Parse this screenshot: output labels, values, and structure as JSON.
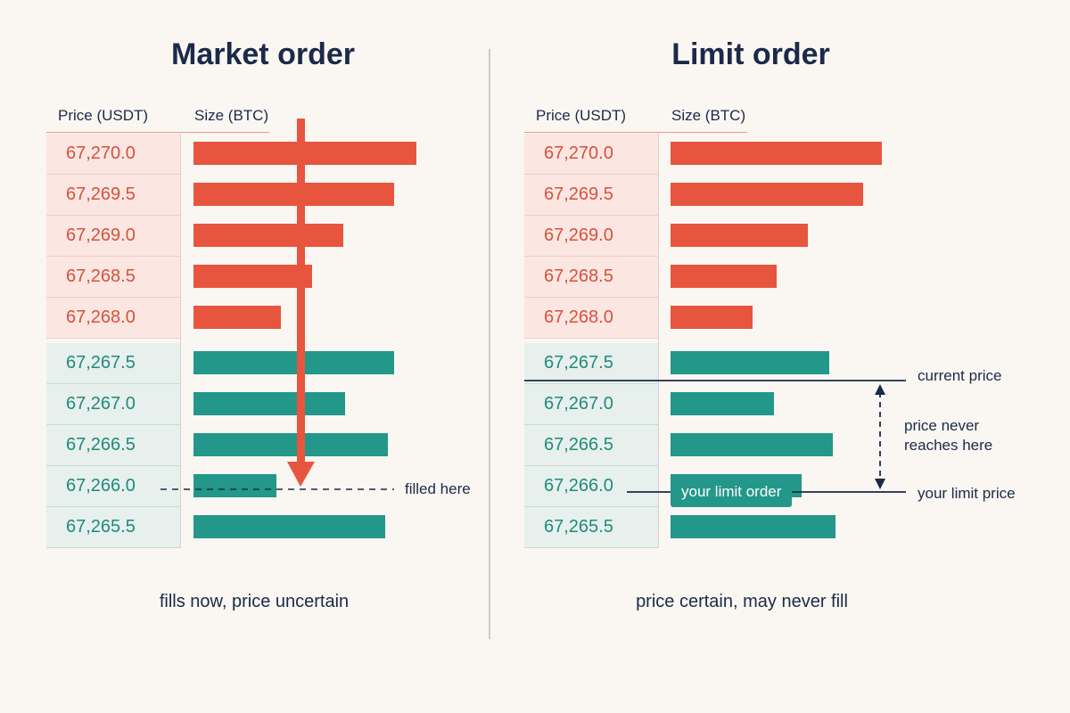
{
  "market": {
    "title": "Market order",
    "col_price": "Price (USDT)",
    "col_size": "Size (BTC)",
    "rows": [
      {
        "price": "67,270.0",
        "side": "ask",
        "size": 1.0
      },
      {
        "price": "67,269.5",
        "side": "ask",
        "size": 0.9
      },
      {
        "price": "67,269.0",
        "side": "ask",
        "size": 0.67
      },
      {
        "price": "67,268.5",
        "side": "ask",
        "size": 0.53
      },
      {
        "price": "67,268.0",
        "side": "ask",
        "size": 0.39
      },
      {
        "price": "67,267.5",
        "side": "bid",
        "size": 0.9
      },
      {
        "price": "67,267.0",
        "side": "bid",
        "size": 0.68
      },
      {
        "price": "67,266.5",
        "side": "bid",
        "size": 0.87
      },
      {
        "price": "67,266.0",
        "side": "bid",
        "size": 0.37
      },
      {
        "price": "67,265.5",
        "side": "bid",
        "size": 0.86
      }
    ],
    "filled_label": "filled here",
    "caption": "fills now, price uncertain"
  },
  "limit": {
    "title": "Limit order",
    "col_price": "Price (USDT)",
    "col_size": "Size (BTC)",
    "rows": [
      {
        "price": "67,270.0",
        "side": "ask",
        "size": 1.0
      },
      {
        "price": "67,269.5",
        "side": "ask",
        "size": 0.91
      },
      {
        "price": "67,269.0",
        "side": "ask",
        "size": 0.65
      },
      {
        "price": "67,268.5",
        "side": "ask",
        "size": 0.5
      },
      {
        "price": "67,268.0",
        "side": "ask",
        "size": 0.39
      },
      {
        "price": "67,267.5",
        "side": "bid",
        "size": 0.75
      },
      {
        "price": "67,267.0",
        "side": "bid",
        "size": 0.49
      },
      {
        "price": "67,266.5",
        "side": "bid",
        "size": 0.77
      },
      {
        "price": "67,266.0",
        "side": "bid",
        "size": 0.62
      },
      {
        "price": "67,265.5",
        "side": "bid",
        "size": 0.78
      }
    ],
    "current_price_label": "current price",
    "never_reaches_label": "price never reaches here",
    "limit_price_label": "your limit price",
    "limit_order_badge": "your limit order",
    "caption": "price certain, may never fill"
  },
  "colors": {
    "ask": "#e8553f",
    "bid": "#23978a",
    "navy": "#1b2a4a",
    "background": "#faf6f1"
  }
}
